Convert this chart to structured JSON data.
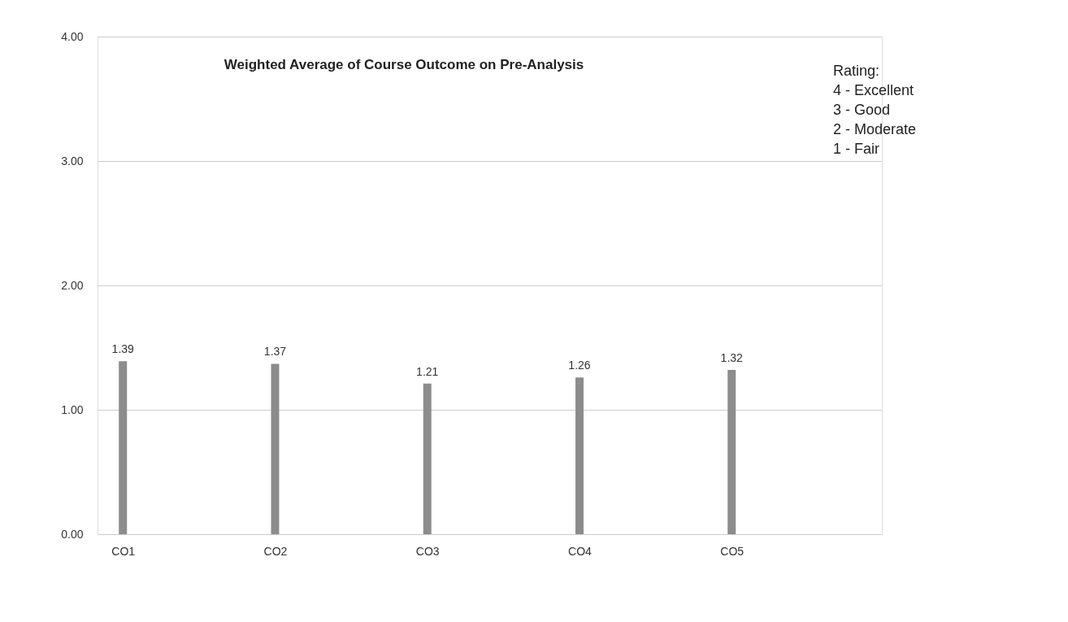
{
  "chart_data": {
    "type": "bar",
    "title": "Weighted Average of Course Outcome on Pre-Analysis",
    "categories": [
      "CO1",
      "CO2",
      "CO3",
      "CO4",
      "CO5"
    ],
    "values": [
      1.39,
      1.37,
      1.21,
      1.26,
      1.32
    ],
    "color": "#8c8c8c",
    "ylim": [
      0,
      4
    ],
    "yticks": [
      {
        "value": 0,
        "label": "0.00"
      },
      {
        "value": 1,
        "label": "1.00"
      },
      {
        "value": 2,
        "label": "2.00"
      },
      {
        "value": 3,
        "label": "3.00"
      },
      {
        "value": 4,
        "label": "4.00"
      }
    ],
    "grid": "y",
    "data_labels": true,
    "annotations": [
      "Rating:",
      "4 - Excellent",
      "3 - Good",
      "2 - Moderate",
      "1 - Fair"
    ]
  }
}
